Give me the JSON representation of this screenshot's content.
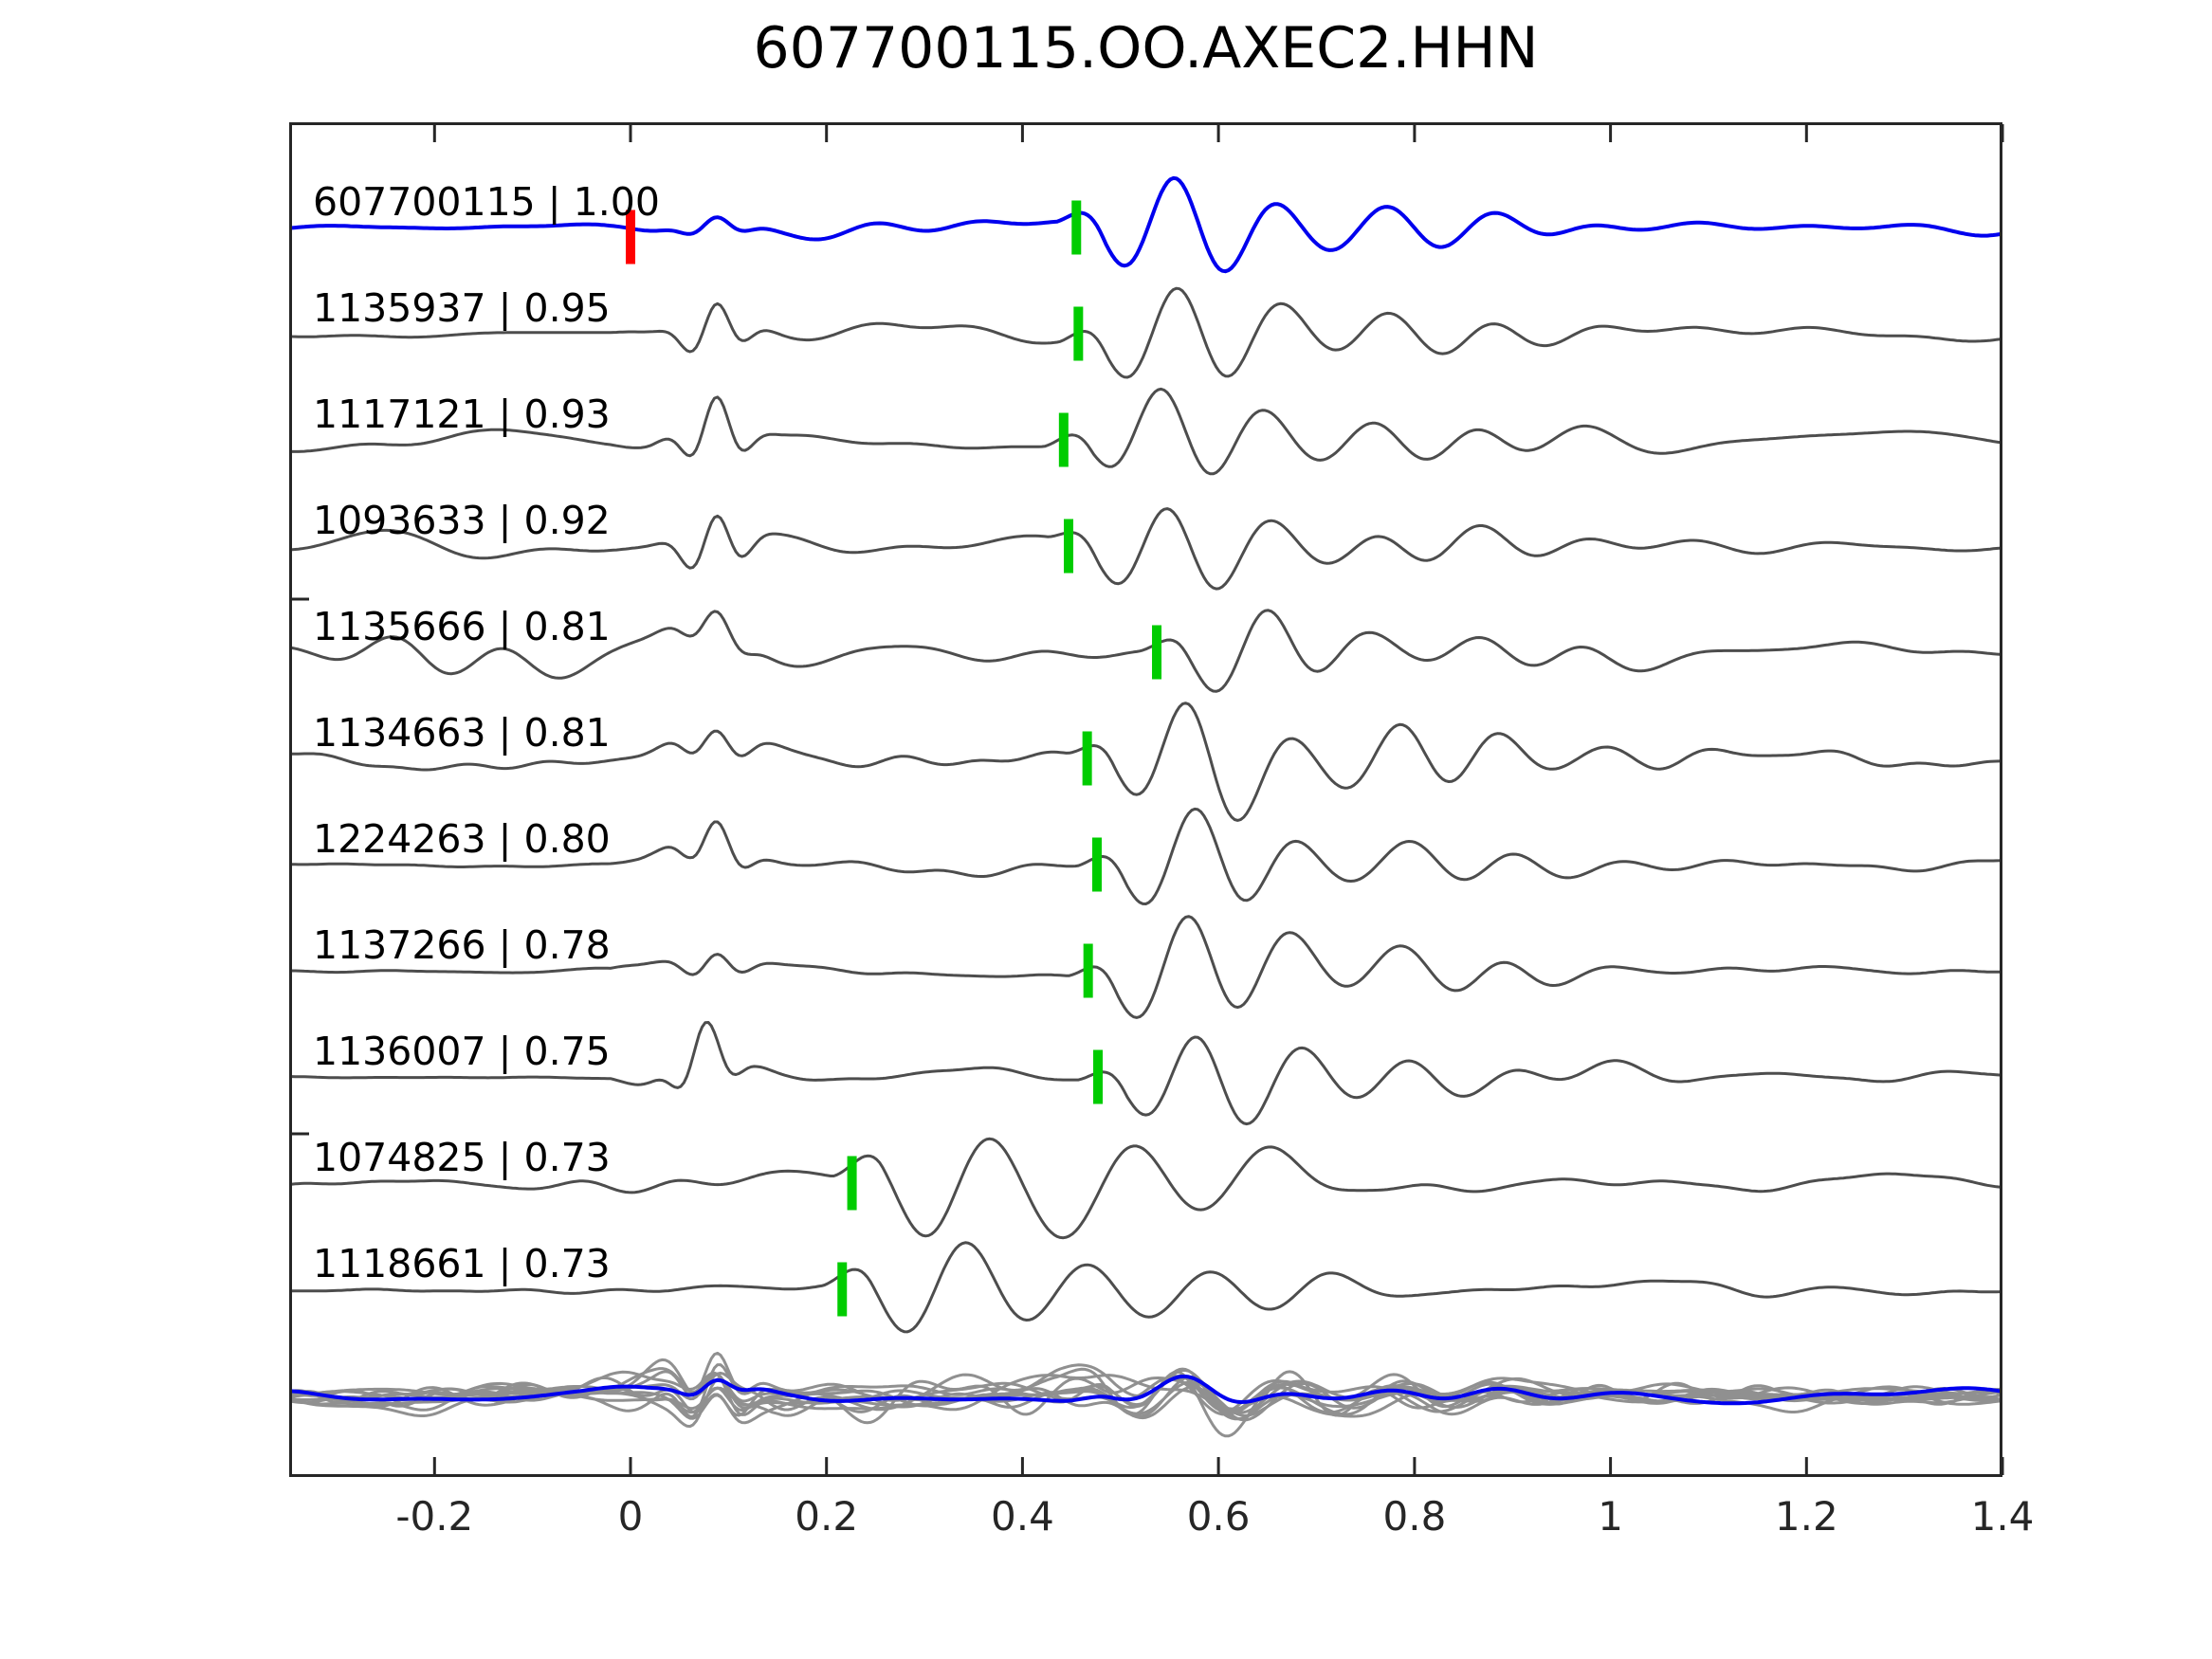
{
  "chart_data": {
    "type": "line",
    "title": "607700115.OO.AXEC2.HHN",
    "x_range": [
      -0.3483,
      1.4
    ],
    "x_ticks": [
      {
        "value": -0.2,
        "label": "-0.2"
      },
      {
        "value": 0,
        "label": "0"
      },
      {
        "value": 0.2,
        "label": "0.2"
      },
      {
        "value": 0.4,
        "label": "0.4"
      },
      {
        "value": 0.6,
        "label": "0.6"
      },
      {
        "value": 0.8,
        "label": "0.8"
      },
      {
        "value": 1,
        "label": "1"
      },
      {
        "value": 1.2,
        "label": "1.2"
      },
      {
        "value": 1.4,
        "label": "1.4"
      }
    ],
    "colors": {
      "template_trace": "#0000ee",
      "match_trace": "#4d4d4d",
      "stack_gray": "#909090",
      "stack_blue": "#0000ee",
      "pick_marker": "#00cc00",
      "template_pick_marker": "#ff0000",
      "axis": "#262626",
      "text": "#000000"
    },
    "traces": [
      {
        "label": "607700115 | 1.00",
        "id": "607700115",
        "corr": "1.00",
        "kind": "template",
        "pick": 0.455,
        "template_pick": 0.0,
        "seed": 11,
        "arr_amp": 50,
        "mini_amp": 10,
        "noise_env": [
          [
            -0.348,
            3.5
          ],
          [
            -0.02,
            4
          ],
          [
            0.03,
            7
          ],
          [
            0.12,
            8
          ],
          [
            0.3,
            9
          ],
          [
            0.42,
            9
          ],
          [
            0.7,
            7
          ],
          [
            0.9,
            5
          ],
          [
            1.2,
            4
          ],
          [
            1.4,
            4
          ]
        ]
      },
      {
        "label": "1135937 | 0.95",
        "id": "1135937",
        "corr": "0.95",
        "kind": "match",
        "pick": 0.457,
        "seed": 22,
        "arr_amp": 46,
        "mini_amp": 30,
        "noise_env": [
          [
            -0.348,
            3
          ],
          [
            -0.02,
            3
          ],
          [
            0.02,
            10
          ],
          [
            0.12,
            11
          ],
          [
            0.3,
            11
          ],
          [
            0.45,
            10
          ],
          [
            0.7,
            9
          ],
          [
            1.0,
            8
          ],
          [
            1.4,
            7
          ]
        ]
      },
      {
        "label": "1117121 | 0.93",
        "id": "1117121",
        "corr": "0.93",
        "kind": "match",
        "pick": 0.442,
        "seed": 33,
        "arr_amp": 44,
        "mini_amp": 38,
        "fmax": 11,
        "noise_env": [
          [
            -0.348,
            13
          ],
          [
            -0.25,
            20
          ],
          [
            -0.15,
            12
          ],
          [
            -0.02,
            8
          ],
          [
            0.02,
            12
          ],
          [
            0.3,
            12
          ],
          [
            0.5,
            11
          ],
          [
            0.8,
            10
          ],
          [
            1.1,
            11
          ],
          [
            1.4,
            9
          ]
        ]
      },
      {
        "label": "1093633 | 0.92",
        "id": "1093633",
        "corr": "0.92",
        "kind": "match",
        "pick": 0.447,
        "seed": 44,
        "arr_amp": 44,
        "mini_amp": 35,
        "fmax": 9,
        "noise_env": [
          [
            -0.348,
            11
          ],
          [
            -0.2,
            13
          ],
          [
            -0.02,
            9
          ],
          [
            0.02,
            10
          ],
          [
            0.3,
            10
          ],
          [
            0.5,
            9
          ],
          [
            0.8,
            8
          ],
          [
            1.4,
            7
          ]
        ]
      },
      {
        "label": "1135666 | 0.81",
        "id": "1135666",
        "corr": "0.81",
        "kind": "match",
        "pick": 0.537,
        "seed": 55,
        "arr_amp": 40,
        "mini_amp": 20,
        "fmax": 16,
        "phase": 1.4,
        "noise_env": [
          [
            -0.348,
            26
          ],
          [
            -0.2,
            30
          ],
          [
            -0.05,
            28
          ],
          [
            0.1,
            22
          ],
          [
            0.25,
            14
          ],
          [
            0.4,
            12
          ],
          [
            0.6,
            12
          ],
          [
            0.8,
            13
          ],
          [
            1.0,
            10
          ],
          [
            1.4,
            9
          ]
        ]
      },
      {
        "label": "1134663 | 0.81",
        "id": "1134663",
        "corr": "0.81",
        "kind": "match",
        "pick": 0.466,
        "seed": 66,
        "arr_amp": 48,
        "mini_amp": 20,
        "fmax": 14,
        "sec": 0.6,
        "noise_env": [
          [
            -0.348,
            15
          ],
          [
            -0.15,
            14
          ],
          [
            0.05,
            16
          ],
          [
            0.25,
            15
          ],
          [
            0.4,
            16
          ],
          [
            0.6,
            15
          ],
          [
            0.8,
            14
          ],
          [
            1.0,
            11
          ],
          [
            1.4,
            10
          ]
        ]
      },
      {
        "label": "1224263 | 0.80",
        "id": "1224263",
        "corr": "0.80",
        "kind": "match",
        "pick": 0.476,
        "seed": 77,
        "arr_amp": 44,
        "mini_amp": 28,
        "noise_env": [
          [
            -0.348,
            2.5
          ],
          [
            -0.02,
            2.5
          ],
          [
            0.02,
            13
          ],
          [
            0.06,
            20
          ],
          [
            0.12,
            13
          ],
          [
            0.3,
            12
          ],
          [
            0.42,
            9
          ],
          [
            0.7,
            11
          ],
          [
            1.0,
            9
          ],
          [
            1.4,
            8
          ]
        ]
      },
      {
        "label": "1137266 | 0.78",
        "id": "1137266",
        "corr": "0.78",
        "kind": "match",
        "pick": 0.467,
        "seed": 88,
        "arr_amp": 52,
        "mini_amp": 16,
        "noise_env": [
          [
            -0.348,
            2
          ],
          [
            -0.02,
            2
          ],
          [
            0.02,
            10
          ],
          [
            0.06,
            14
          ],
          [
            0.12,
            9
          ],
          [
            0.3,
            8
          ],
          [
            0.42,
            7
          ],
          [
            0.7,
            10
          ],
          [
            1.0,
            8
          ],
          [
            1.4,
            7
          ]
        ]
      },
      {
        "label": "1136007 | 0.75",
        "id": "1136007",
        "corr": "0.75",
        "kind": "match",
        "pick": 0.477,
        "seed": 99,
        "arr_amp": 46,
        "mini_amp": 35,
        "mini_t": 0.075,
        "noise_env": [
          [
            -0.348,
            2
          ],
          [
            -0.02,
            2
          ],
          [
            0.02,
            14
          ],
          [
            0.07,
            22
          ],
          [
            0.13,
            11
          ],
          [
            0.3,
            10
          ],
          [
            0.42,
            11
          ],
          [
            0.7,
            12
          ],
          [
            1.0,
            9
          ],
          [
            1.4,
            8
          ]
        ]
      },
      {
        "label": "1074825 | 0.73",
        "id": "1074825",
        "corr": "0.73",
        "kind": "match",
        "pick": 0.226,
        "seed": 110,
        "arr_amp": 46,
        "mini_amp": 0,
        "sec": 0.7,
        "freq": 7,
        "phase": 1.5,
        "wid": 0.16,
        "noise_env": [
          [
            -0.348,
            9
          ],
          [
            -0.1,
            11
          ],
          [
            0.05,
            12
          ],
          [
            0.15,
            13
          ],
          [
            0.45,
            14
          ],
          [
            0.65,
            12
          ],
          [
            0.85,
            11
          ],
          [
            1.1,
            9
          ],
          [
            1.4,
            8
          ]
        ]
      },
      {
        "label": "1118661 | 0.73",
        "id": "1118661",
        "corr": "0.73",
        "kind": "match",
        "pick": 0.216,
        "seed": 121,
        "arr_amp": 42,
        "mini_amp": 0,
        "sec": 0.5,
        "freq": 8,
        "phase": 1.5,
        "wid": 0.12,
        "noise_env": [
          [
            -0.348,
            7
          ],
          [
            -0.1,
            8
          ],
          [
            0.05,
            9
          ],
          [
            0.15,
            10
          ],
          [
            0.45,
            11
          ],
          [
            0.65,
            10
          ],
          [
            0.9,
            12
          ],
          [
            1.2,
            8
          ],
          [
            1.4,
            7
          ]
        ]
      }
    ],
    "stack": {
      "gray_count": 11,
      "seed": 400,
      "blue_seed": 900,
      "pick": 0.465,
      "arr_amp": 13,
      "mini_amp": 15,
      "noise_env": [
        [
          -0.348,
          9
        ],
        [
          -0.05,
          9
        ],
        [
          0.03,
          16
        ],
        [
          0.08,
          18
        ],
        [
          0.15,
          10
        ],
        [
          0.3,
          10
        ],
        [
          0.42,
          13
        ],
        [
          0.5,
          15
        ],
        [
          0.62,
          12
        ],
        [
          0.8,
          10
        ],
        [
          1.1,
          9
        ],
        [
          1.4,
          8
        ]
      ]
    }
  }
}
